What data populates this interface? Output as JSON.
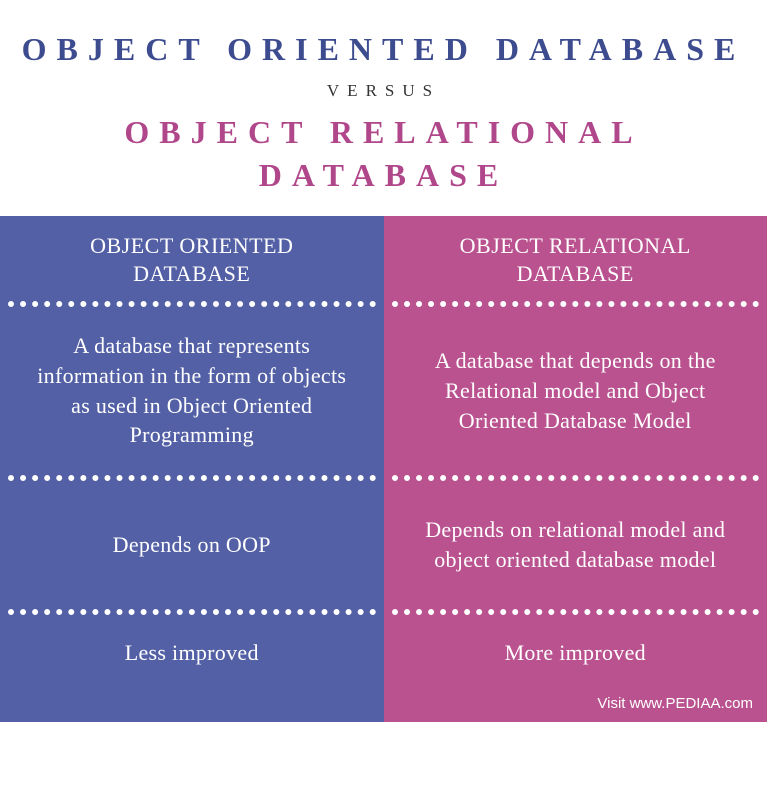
{
  "header": {
    "title_top": "OBJECT ORIENTED DATABASE",
    "versus": "VERSUS",
    "title_bottom": "OBJECT RELATIONAL DATABASE",
    "title_top_color": "#3d4b8f",
    "title_bottom_color": "#b0478a",
    "versus_color": "#333333"
  },
  "left": {
    "bg_color": "#5360a5",
    "header": "OBJECT ORIENTED DATABASE",
    "definition": "A database that represents information in the form of objects as used in Object Oriented Programming",
    "depends": "Depends on OOP",
    "improved": "Less improved"
  },
  "right": {
    "bg_color": "#b9528f",
    "header": "OBJECT RELATIONAL DATABASE",
    "definition": "A database that depends on the Relational model and Object Oriented Database Model",
    "depends": "Depends on relational model and object oriented database model",
    "improved": "More improved"
  },
  "footer": {
    "text": "Visit www.PEDIAA.com"
  },
  "style": {
    "divider_color": "#ffffff",
    "text_color": "#ffffff"
  }
}
